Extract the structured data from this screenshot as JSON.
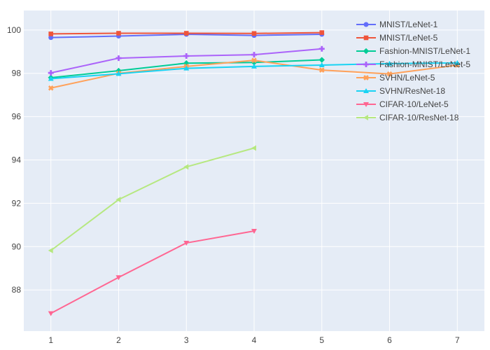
{
  "chart_data": {
    "type": "line",
    "grid": true,
    "legend_position": "top-right",
    "background": "#E5ECF6",
    "gridline_color": "#FFFFFF",
    "xlim": [
      0.6,
      7.4
    ],
    "ylim": [
      86.1,
      100.9
    ],
    "x_ticks": [
      1,
      2,
      3,
      4,
      5,
      6,
      7
    ],
    "y_ticks": [
      88,
      90,
      92,
      94,
      96,
      98,
      100
    ],
    "series": [
      {
        "name": "MNIST/LeNet-1",
        "color": "#636EFA",
        "marker": "circle",
        "x": [
          1,
          2,
          3,
          4,
          5
        ],
        "y": [
          99.65,
          99.72,
          99.8,
          99.75,
          99.8
        ]
      },
      {
        "name": "MNIST/LeNet-5",
        "color": "#EF553B",
        "marker": "square",
        "x": [
          1,
          2,
          3,
          4,
          5
        ],
        "y": [
          99.82,
          99.85,
          99.85,
          99.84,
          99.88
        ]
      },
      {
        "name": "Fashion-MNIST/LeNet-1",
        "color": "#00CC96",
        "marker": "diamond",
        "x": [
          1,
          2,
          3,
          4,
          5
        ],
        "y": [
          97.8,
          98.12,
          98.47,
          98.5,
          98.62
        ]
      },
      {
        "name": "Fashion-MNIST/LeNet-5",
        "color": "#AB63FA",
        "marker": "cross",
        "x": [
          1,
          2,
          3,
          4,
          5
        ],
        "y": [
          98.02,
          98.7,
          98.8,
          98.86,
          99.13
        ]
      },
      {
        "name": "SVHN/LeNet-5",
        "color": "#FFA15A",
        "marker": "x",
        "x": [
          1,
          2,
          3,
          4,
          5,
          6,
          7
        ],
        "y": [
          97.32,
          98.0,
          98.32,
          98.6,
          98.15,
          97.97,
          98.38
        ]
      },
      {
        "name": "SVHN/ResNet-18",
        "color": "#19D3F3",
        "marker": "triangle-up",
        "x": [
          1,
          2,
          3,
          4,
          5,
          6,
          7
        ],
        "y": [
          97.75,
          97.98,
          98.23,
          98.32,
          98.38,
          98.45,
          98.48
        ]
      },
      {
        "name": "CIFAR-10/LeNet-5",
        "color": "#FF6692",
        "marker": "triangle-down",
        "x": [
          1,
          2,
          3,
          4
        ],
        "y": [
          86.92,
          88.58,
          90.17,
          90.72
        ]
      },
      {
        "name": "CIFAR-10/ResNet-18",
        "color": "#B6E880",
        "marker": "triangle-left",
        "x": [
          1,
          2,
          3,
          4
        ],
        "y": [
          89.82,
          92.17,
          93.68,
          94.55
        ]
      }
    ]
  }
}
